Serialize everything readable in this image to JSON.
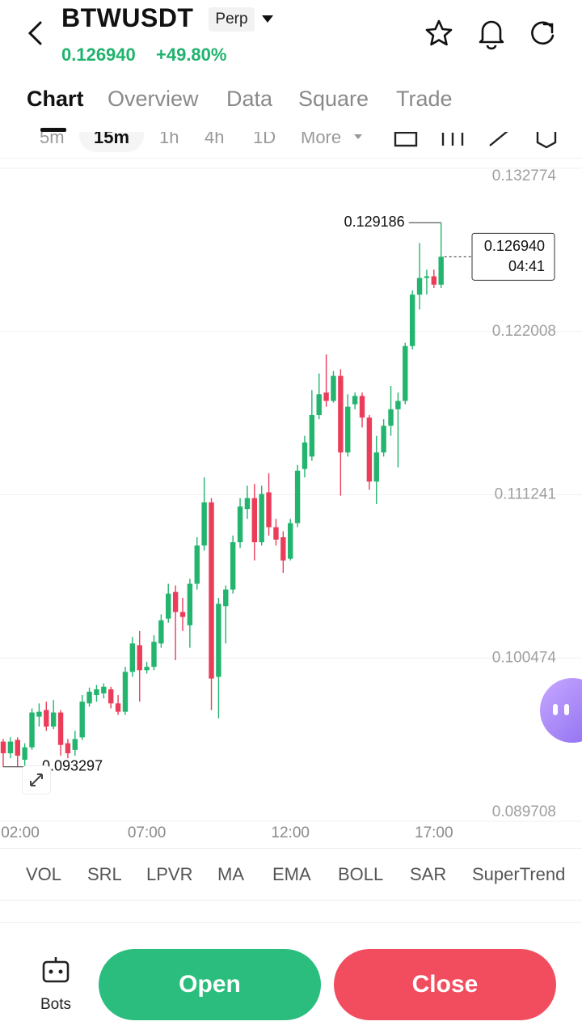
{
  "header": {
    "symbol": "BTWUSDT",
    "badge": "Perp",
    "price": "0.126940",
    "change": "+49.80%"
  },
  "tabs": [
    "Chart",
    "Overview",
    "Data",
    "Square",
    "Trade"
  ],
  "intervals": [
    "5m",
    "15m",
    "1h",
    "4h",
    "1D",
    "More"
  ],
  "chart_data": {
    "type": "candlestick",
    "categories": [
      "02:00",
      null,
      null,
      null,
      null,
      null,
      null,
      null,
      null,
      null,
      null,
      null,
      null,
      null,
      null,
      null,
      null,
      null,
      null,
      null,
      "07:00",
      null,
      null,
      null,
      null,
      null,
      null,
      null,
      null,
      null,
      null,
      null,
      null,
      null,
      null,
      null,
      null,
      null,
      null,
      null,
      "12:00",
      null,
      null,
      null,
      null,
      null,
      null,
      null,
      null,
      null,
      null,
      null,
      null,
      null,
      null,
      null,
      null,
      null,
      null,
      null,
      "17:00",
      null
    ],
    "open": [
      0.09496,
      0.09419,
      0.09507,
      0.09376,
      0.09458,
      0.09661,
      0.09704,
      0.09595,
      0.09688,
      0.09485,
      0.09441,
      0.09524,
      0.09748,
      0.09803,
      0.09814,
      0.09841,
      0.09748,
      0.09693,
      0.09956,
      0.10132,
      0.09967,
      0.09989,
      0.10143,
      0.10307,
      0.10483,
      0.10351,
      0.10263,
      0.10537,
      0.10789,
      0.11074,
      0.09923,
      0.10389,
      0.10499,
      0.10811,
      0.1103,
      0.11102,
      0.10811,
      0.1114,
      0.1091,
      0.10844,
      0.10702,
      0.10937,
      0.11294,
      0.11376,
      0.1165,
      0.11798,
      0.11743,
      0.11908,
      0.11403,
      0.11721,
      0.11776,
      0.11633,
      0.11211,
      0.11403,
      0.11579,
      0.11688,
      0.11743,
      0.12105,
      0.12444,
      0.12554,
      0.12565,
      0.1251
    ],
    "high": [
      0.09513,
      0.09524,
      0.09524,
      0.09485,
      0.09715,
      0.09748,
      0.09759,
      0.0977,
      0.09704,
      0.09513,
      0.09567,
      0.09803,
      0.09852,
      0.09869,
      0.0988,
      0.09858,
      0.09803,
      0.09989,
      0.10186,
      0.10225,
      0.10022,
      0.10197,
      0.10335,
      0.10537,
      0.10526,
      0.10444,
      0.1057,
      0.10844,
      0.11239,
      0.11102,
      0.10444,
      0.10526,
      0.10855,
      0.11102,
      0.11184,
      0.11195,
      0.11184,
      0.11266,
      0.10965,
      0.10883,
      0.10965,
      0.11321,
      0.11513,
      0.11814,
      0.11924,
      0.1205,
      0.11941,
      0.11952,
      0.11787,
      0.11798,
      0.11798,
      0.1165,
      0.11513,
      0.11622,
      0.11842,
      0.11798,
      0.12126,
      0.12472,
      0.12784,
      0.12609,
      0.12609,
      0.129186
    ],
    "low": [
      0.093297,
      0.09386,
      0.09332,
      0.09335,
      0.09441,
      0.09595,
      0.09567,
      0.09578,
      0.09403,
      0.09386,
      0.09403,
      0.09507,
      0.09726,
      0.09759,
      0.09781,
      0.09715,
      0.09672,
      0.09672,
      0.09923,
      0.09759,
      0.09945,
      0.09967,
      0.10115,
      0.1028,
      0.10033,
      0.10225,
      0.10115,
      0.10499,
      0.10756,
      0.09704,
      0.0965,
      0.10143,
      0.10472,
      0.10773,
      0.10965,
      0.10691,
      0.10789,
      0.10855,
      0.10789,
      0.10609,
      0.10691,
      0.1091,
      0.11239,
      0.11348,
      0.11622,
      0.11705,
      0.11732,
      0.11118,
      0.11376,
      0.11688,
      0.11568,
      0.11157,
      0.11063,
      0.11376,
      0.11513,
      0.11305,
      0.11721,
      0.12083,
      0.12346,
      0.12444,
      0.12488,
      0.12488
    ],
    "close": [
      0.09419,
      0.09496,
      0.09403,
      0.09458,
      0.09688,
      0.09693,
      0.09595,
      0.09688,
      0.09474,
      0.09419,
      0.09513,
      0.09759,
      0.09825,
      0.09841,
      0.09858,
      0.09748,
      0.09693,
      0.09956,
      0.10143,
      0.09967,
      0.09989,
      0.10154,
      0.10296,
      0.10472,
      0.10351,
      0.10318,
      0.10537,
      0.10789,
      0.11074,
      0.09912,
      0.10405,
      0.10499,
      0.10811,
      0.11047,
      0.11102,
      0.10811,
      0.11129,
      0.1091,
      0.10828,
      0.10691,
      0.10937,
      0.11283,
      0.11469,
      0.1165,
      0.11787,
      0.11743,
      0.11908,
      0.11403,
      0.11705,
      0.11776,
      0.11633,
      0.11211,
      0.11403,
      0.11579,
      0.11688,
      0.11743,
      0.12105,
      0.12444,
      0.12554,
      0.12565,
      0.1251,
      0.12694
    ],
    "up_color": "#23b46e",
    "down_color": "#eb3d5a",
    "ylim": [
      0.089708,
      0.132774
    ],
    "yticks": [
      0.089708,
      0.100474,
      0.111241,
      0.122008,
      0.132774
    ],
    "grid": true,
    "high_label": "0.129186",
    "low_label": "0.093297",
    "last_price_label": "0.126940",
    "countdown": "04:41"
  },
  "indicators": [
    "VOL",
    "SRL",
    "LPVR",
    "MA",
    "EMA",
    "BOLL",
    "SAR",
    "SuperTrend"
  ],
  "footer": {
    "bots": "Bots",
    "open": "Open",
    "close": "Close"
  }
}
